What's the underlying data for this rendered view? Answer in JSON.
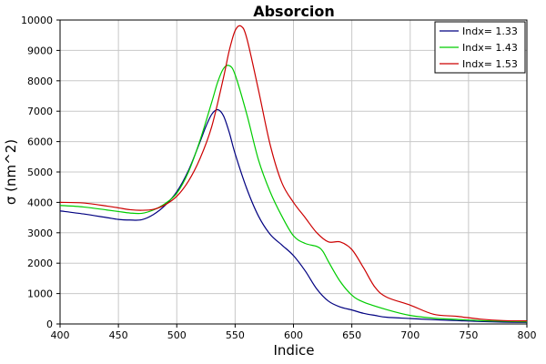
{
  "chart_data": {
    "type": "line",
    "title": "Absorcion",
    "xlabel": "Indice",
    "ylabel": "σ (nm^2)",
    "xlim": [
      400,
      800
    ],
    "ylim": [
      0,
      10000
    ],
    "x_ticks": [
      400,
      450,
      500,
      550,
      600,
      650,
      700,
      750,
      800
    ],
    "y_ticks": [
      0,
      1000,
      2000,
      3000,
      4000,
      5000,
      6000,
      7000,
      8000,
      9000,
      10000
    ],
    "grid": true,
    "legend_position": "top-right",
    "series": [
      {
        "name": "Indx= 1.33",
        "color": "#000080",
        "x": [
          400,
          420,
          440,
          450,
          460,
          470,
          480,
          490,
          500,
          510,
          520,
          525,
          530,
          535,
          540,
          545,
          550,
          560,
          570,
          580,
          590,
          600,
          610,
          620,
          630,
          640,
          650,
          660,
          670,
          680,
          700,
          720,
          740,
          760,
          780,
          800
        ],
        "y": [
          3720,
          3620,
          3500,
          3440,
          3420,
          3430,
          3600,
          3900,
          4350,
          5050,
          6000,
          6500,
          6900,
          7050,
          6850,
          6300,
          5600,
          4450,
          3550,
          2950,
          2600,
          2250,
          1750,
          1150,
          750,
          560,
          460,
          350,
          280,
          220,
          180,
          140,
          110,
          80,
          60,
          50
        ]
      },
      {
        "name": "Indx= 1.43",
        "color": "#00cc00",
        "x": [
          400,
          420,
          440,
          450,
          460,
          470,
          480,
          490,
          500,
          510,
          520,
          530,
          535,
          540,
          545,
          550,
          560,
          570,
          580,
          590,
          600,
          610,
          620,
          625,
          630,
          640,
          650,
          660,
          680,
          700,
          720,
          740,
          760,
          780,
          800
        ],
        "y": [
          3900,
          3850,
          3750,
          3700,
          3650,
          3640,
          3750,
          3960,
          4300,
          5000,
          6050,
          7300,
          7950,
          8400,
          8500,
          8200,
          6900,
          5400,
          4350,
          3550,
          2900,
          2650,
          2550,
          2400,
          2050,
          1400,
          950,
          720,
          470,
          280,
          190,
          150,
          110,
          90,
          70
        ]
      },
      {
        "name": "Indx= 1.53",
        "color": "#cc0000",
        "x": [
          400,
          420,
          440,
          450,
          460,
          470,
          480,
          490,
          500,
          510,
          520,
          530,
          540,
          545,
          550,
          555,
          560,
          570,
          580,
          590,
          600,
          610,
          620,
          630,
          640,
          650,
          660,
          670,
          680,
          700,
          720,
          740,
          760,
          780,
          800
        ],
        "y": [
          4000,
          3980,
          3880,
          3820,
          3760,
          3740,
          3770,
          3920,
          4200,
          4700,
          5450,
          6500,
          8100,
          9000,
          9650,
          9800,
          9400,
          7700,
          5900,
          4650,
          4000,
          3500,
          3000,
          2700,
          2700,
          2450,
          1850,
          1200,
          880,
          620,
          320,
          250,
          160,
          110,
          100
        ]
      }
    ]
  }
}
